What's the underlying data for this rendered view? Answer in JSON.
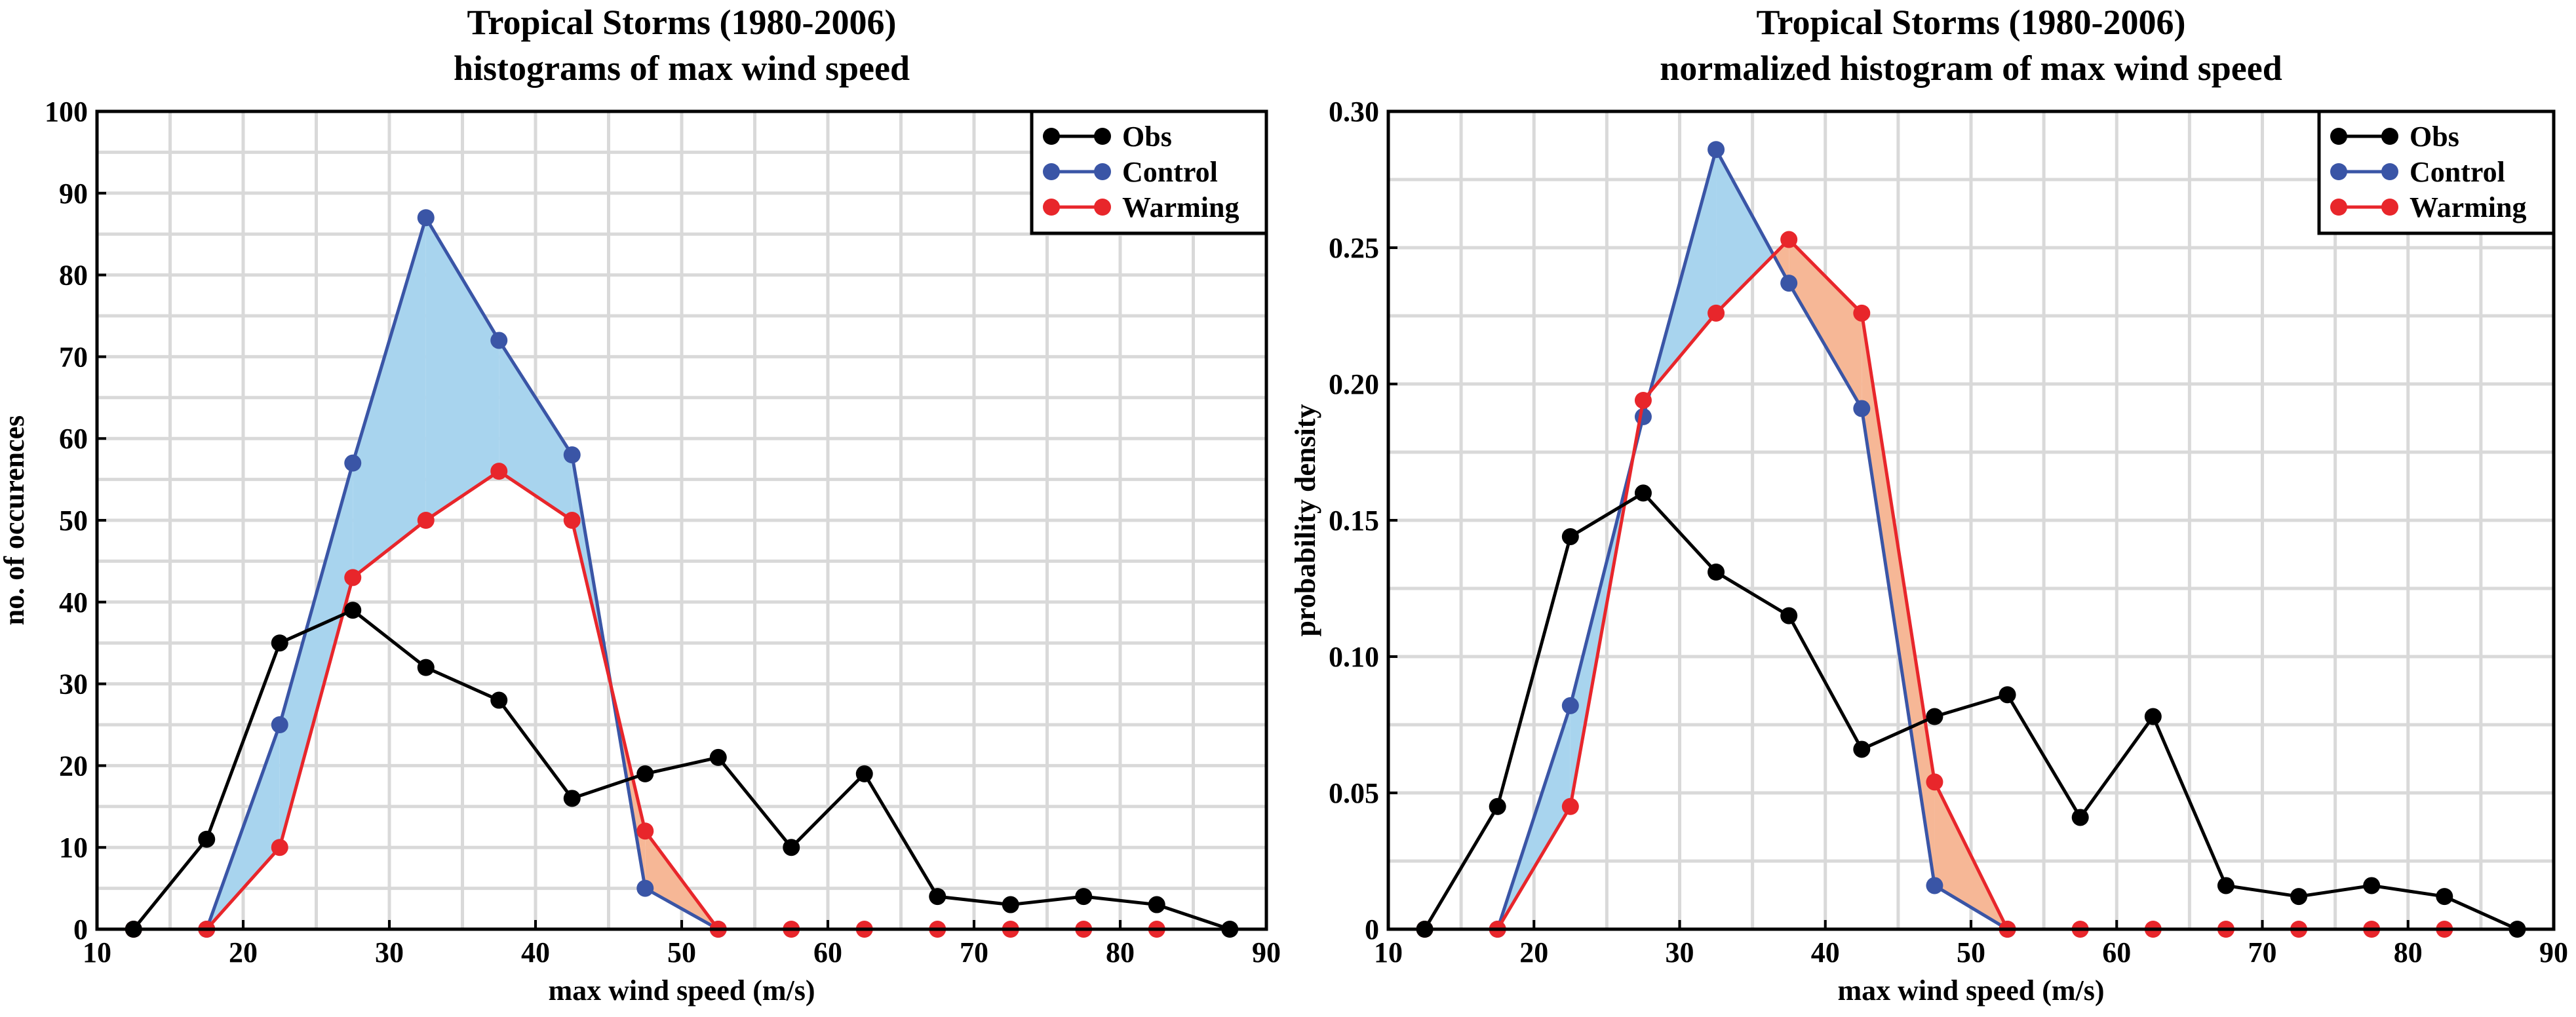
{
  "colors": {
    "obs": "#000000",
    "control": "#3a55a6",
    "warming": "#e8262b",
    "control_fill": "#a8d4ee",
    "warming_fill": "#f6b796",
    "grid": "#d9d9d9"
  },
  "legend": {
    "placement": "top-right",
    "items": [
      "Obs",
      "Control",
      "Warming"
    ]
  },
  "chart_data": [
    {
      "type": "line",
      "title": "Tropical Storms  (1980-2006)",
      "subtitle": "histograms of max wind speed",
      "xlabel": "max wind speed (m/s)",
      "ylabel": "no. of occurences",
      "xlim": [
        10,
        90
      ],
      "ylim": [
        0,
        100
      ],
      "xticks": [
        10,
        20,
        30,
        40,
        50,
        60,
        70,
        80,
        90
      ],
      "yticks": [
        0,
        10,
        20,
        30,
        40,
        50,
        60,
        70,
        80,
        90,
        100
      ],
      "ytick_labels": [
        "0",
        "10",
        "20",
        "30",
        "40",
        "50",
        "60",
        "70",
        "80",
        "90",
        "100"
      ],
      "grid": true,
      "x": [
        12.5,
        17.5,
        22.5,
        27.5,
        32.5,
        37.5,
        42.5,
        47.5,
        52.5,
        57.5,
        62.5,
        67.5,
        72.5,
        77.5,
        82.5,
        87.5
      ],
      "series": [
        {
          "name": "Obs",
          "values": [
            0,
            11,
            35,
            39,
            32,
            28,
            16,
            19,
            21,
            10,
            19,
            4,
            3,
            4,
            3,
            0
          ]
        },
        {
          "name": "Control",
          "values": [
            null,
            0,
            25,
            57,
            87,
            72,
            58,
            5,
            0,
            null,
            null,
            null,
            null,
            null,
            null,
            null
          ]
        },
        {
          "name": "Warming",
          "values": [
            0,
            0,
            10,
            43,
            50,
            56,
            50,
            12,
            0,
            0,
            0,
            0,
            0,
            0,
            0,
            null
          ]
        }
      ]
    },
    {
      "type": "line",
      "title": "Tropical Storms  (1980-2006)",
      "subtitle": "normalized histogram of max wind speed",
      "xlabel": "max wind speed (m/s)",
      "ylabel": "probability density",
      "xlim": [
        10,
        90
      ],
      "ylim": [
        0,
        0.3
      ],
      "xticks": [
        10,
        20,
        30,
        40,
        50,
        60,
        70,
        80,
        90
      ],
      "yticks": [
        0,
        0.05,
        0.1,
        0.15,
        0.2,
        0.25,
        0.3
      ],
      "ytick_labels": [
        "0",
        "0.05",
        "0.10",
        "0.15",
        "0.20",
        "0.25",
        "0.30"
      ],
      "grid": true,
      "x": [
        12.5,
        17.5,
        22.5,
        27.5,
        32.5,
        37.5,
        42.5,
        47.5,
        52.5,
        57.5,
        62.5,
        67.5,
        72.5,
        77.5,
        82.5,
        87.5
      ],
      "series": [
        {
          "name": "Obs",
          "values": [
            0,
            0.045,
            0.144,
            0.16,
            0.131,
            0.115,
            0.066,
            0.078,
            0.086,
            0.041,
            0.078,
            0.016,
            0.012,
            0.016,
            0.012,
            0
          ]
        },
        {
          "name": "Control",
          "values": [
            null,
            0,
            0.082,
            0.188,
            0.286,
            0.237,
            0.191,
            0.016,
            0,
            null,
            null,
            null,
            null,
            null,
            null,
            null
          ]
        },
        {
          "name": "Warming",
          "values": [
            0,
            0,
            0.045,
            0.194,
            0.226,
            0.253,
            0.226,
            0.054,
            0,
            0,
            0,
            0,
            0,
            0,
            0,
            null
          ]
        }
      ]
    }
  ]
}
